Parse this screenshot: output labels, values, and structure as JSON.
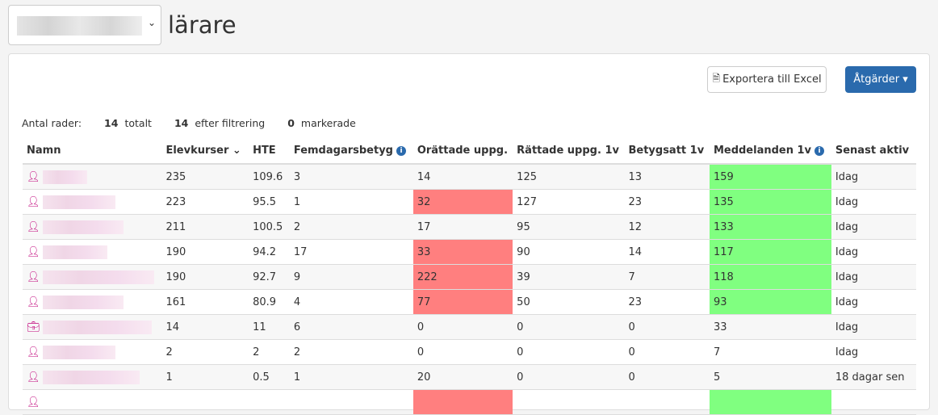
{
  "header": {
    "selector_value": "",
    "title": "lärare"
  },
  "toolbar": {
    "export_label": "Exportera till Excel",
    "actions_label": "Åtgärder ▾"
  },
  "counts": {
    "label": "Antal rader:",
    "total": "14",
    "total_label": "totalt",
    "filtered": "14",
    "filtered_label": "efter filtrering",
    "marked": "0",
    "marked_label": "markerade"
  },
  "columns": [
    "Namn",
    "Elevkurser",
    "HTE",
    "Femdagarsbetyg",
    "Orättade uppg.",
    "Rättade uppg. 1v",
    "Betygsatt 1v",
    "Meddelanden 1v",
    "Senast aktiv"
  ],
  "colors": {
    "red": "#ff7f7f",
    "green": "#80ff80",
    "accent": "#2a6aad",
    "user_icon": "#c0007a"
  },
  "rows": [
    {
      "icon": "user-icon",
      "cells": [
        "235",
        "109.6",
        "3",
        "14",
        "125",
        "13",
        "159",
        "Idag"
      ],
      "red": false,
      "green": true
    },
    {
      "icon": "user-icon",
      "cells": [
        "223",
        "95.5",
        "1",
        "32",
        "127",
        "23",
        "135",
        "Idag"
      ],
      "red": true,
      "green": true
    },
    {
      "icon": "user-icon",
      "cells": [
        "211",
        "100.5",
        "2",
        "17",
        "95",
        "12",
        "133",
        "Idag"
      ],
      "red": false,
      "green": true
    },
    {
      "icon": "user-icon",
      "cells": [
        "190",
        "94.2",
        "17",
        "33",
        "90",
        "14",
        "117",
        "Idag"
      ],
      "red": true,
      "green": true
    },
    {
      "icon": "user-icon",
      "cells": [
        "190",
        "92.7",
        "9",
        "222",
        "39",
        "7",
        "118",
        "Idag"
      ],
      "red": true,
      "green": true
    },
    {
      "icon": "user-icon",
      "cells": [
        "161",
        "80.9",
        "4",
        "77",
        "50",
        "23",
        "93",
        "Idag"
      ],
      "red": true,
      "green": true
    },
    {
      "icon": "briefcase-icon",
      "cells": [
        "14",
        "11",
        "6",
        "0",
        "0",
        "0",
        "33",
        "Idag"
      ],
      "red": false,
      "green": false
    },
    {
      "icon": "user-icon",
      "cells": [
        "2",
        "2",
        "2",
        "0",
        "0",
        "0",
        "7",
        "Idag"
      ],
      "red": false,
      "green": false
    },
    {
      "icon": "user-icon",
      "cells": [
        "1",
        "0.5",
        "1",
        "20",
        "0",
        "0",
        "5",
        "18 dagar sen"
      ],
      "red": false,
      "green": false
    },
    {
      "icon": "user-icon",
      "cells": [
        "",
        "",
        "",
        "",
        "",
        "",
        "",
        ""
      ],
      "red": true,
      "green": true
    }
  ]
}
